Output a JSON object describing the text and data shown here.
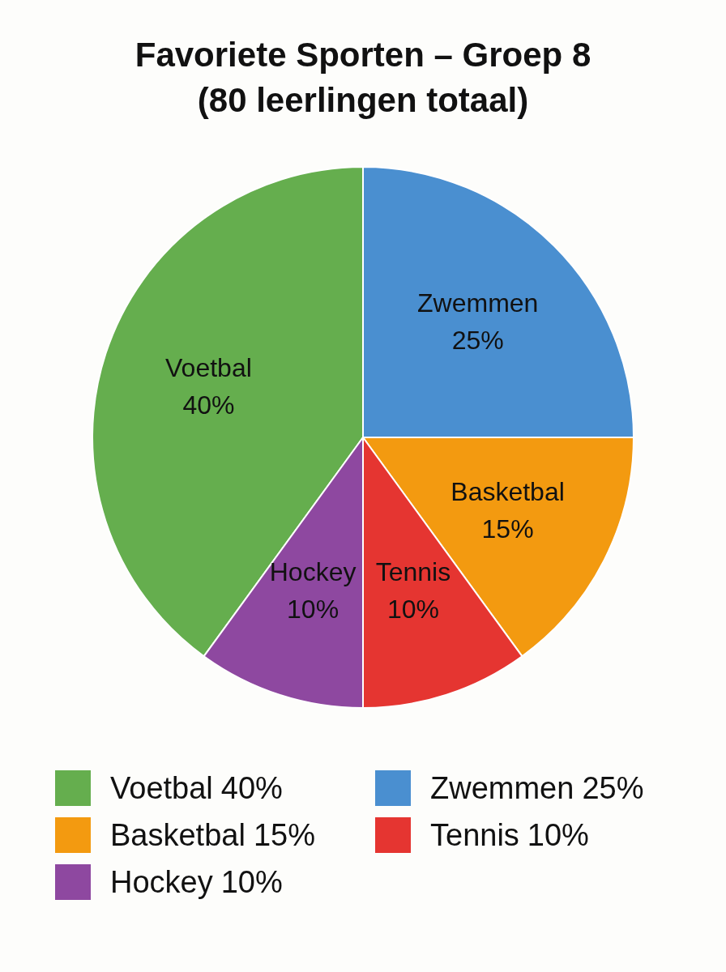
{
  "chart_data": {
    "type": "pie",
    "title": "Favoriete Sporten – Groep 8",
    "subtitle": "(80 leerlingen totaal)",
    "categories": [
      "Voetbal",
      "Zwemmen",
      "Basketbal",
      "Tennis",
      "Hockey"
    ],
    "values": [
      40,
      25,
      15,
      10,
      10
    ],
    "value_labels": [
      "40%",
      "25%",
      "15%",
      "10%",
      "10%"
    ],
    "colors": [
      "#65ae4e",
      "#4a8fd0",
      "#f39a10",
      "#e53531",
      "#8e48a0"
    ],
    "legend": "bottom"
  }
}
